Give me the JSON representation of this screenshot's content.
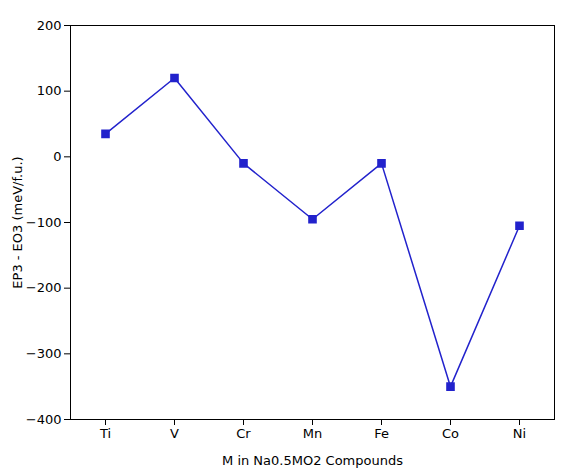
{
  "chart_data": {
    "type": "line",
    "categories": [
      "Ti",
      "V",
      "Cr",
      "Mn",
      "Fe",
      "Co",
      "Ni"
    ],
    "values": [
      35,
      120,
      -10,
      -95,
      -10,
      -350,
      -105
    ],
    "color": "#2222cc",
    "marker": "square",
    "xlabel": "M in Na0.5MO2 Compounds",
    "ylabel": "EP3 - EO3 (meV/f.u.)",
    "ylim": [
      -400,
      200
    ],
    "yticks": [
      -400,
      -300,
      -200,
      -100,
      0,
      100,
      200
    ]
  }
}
